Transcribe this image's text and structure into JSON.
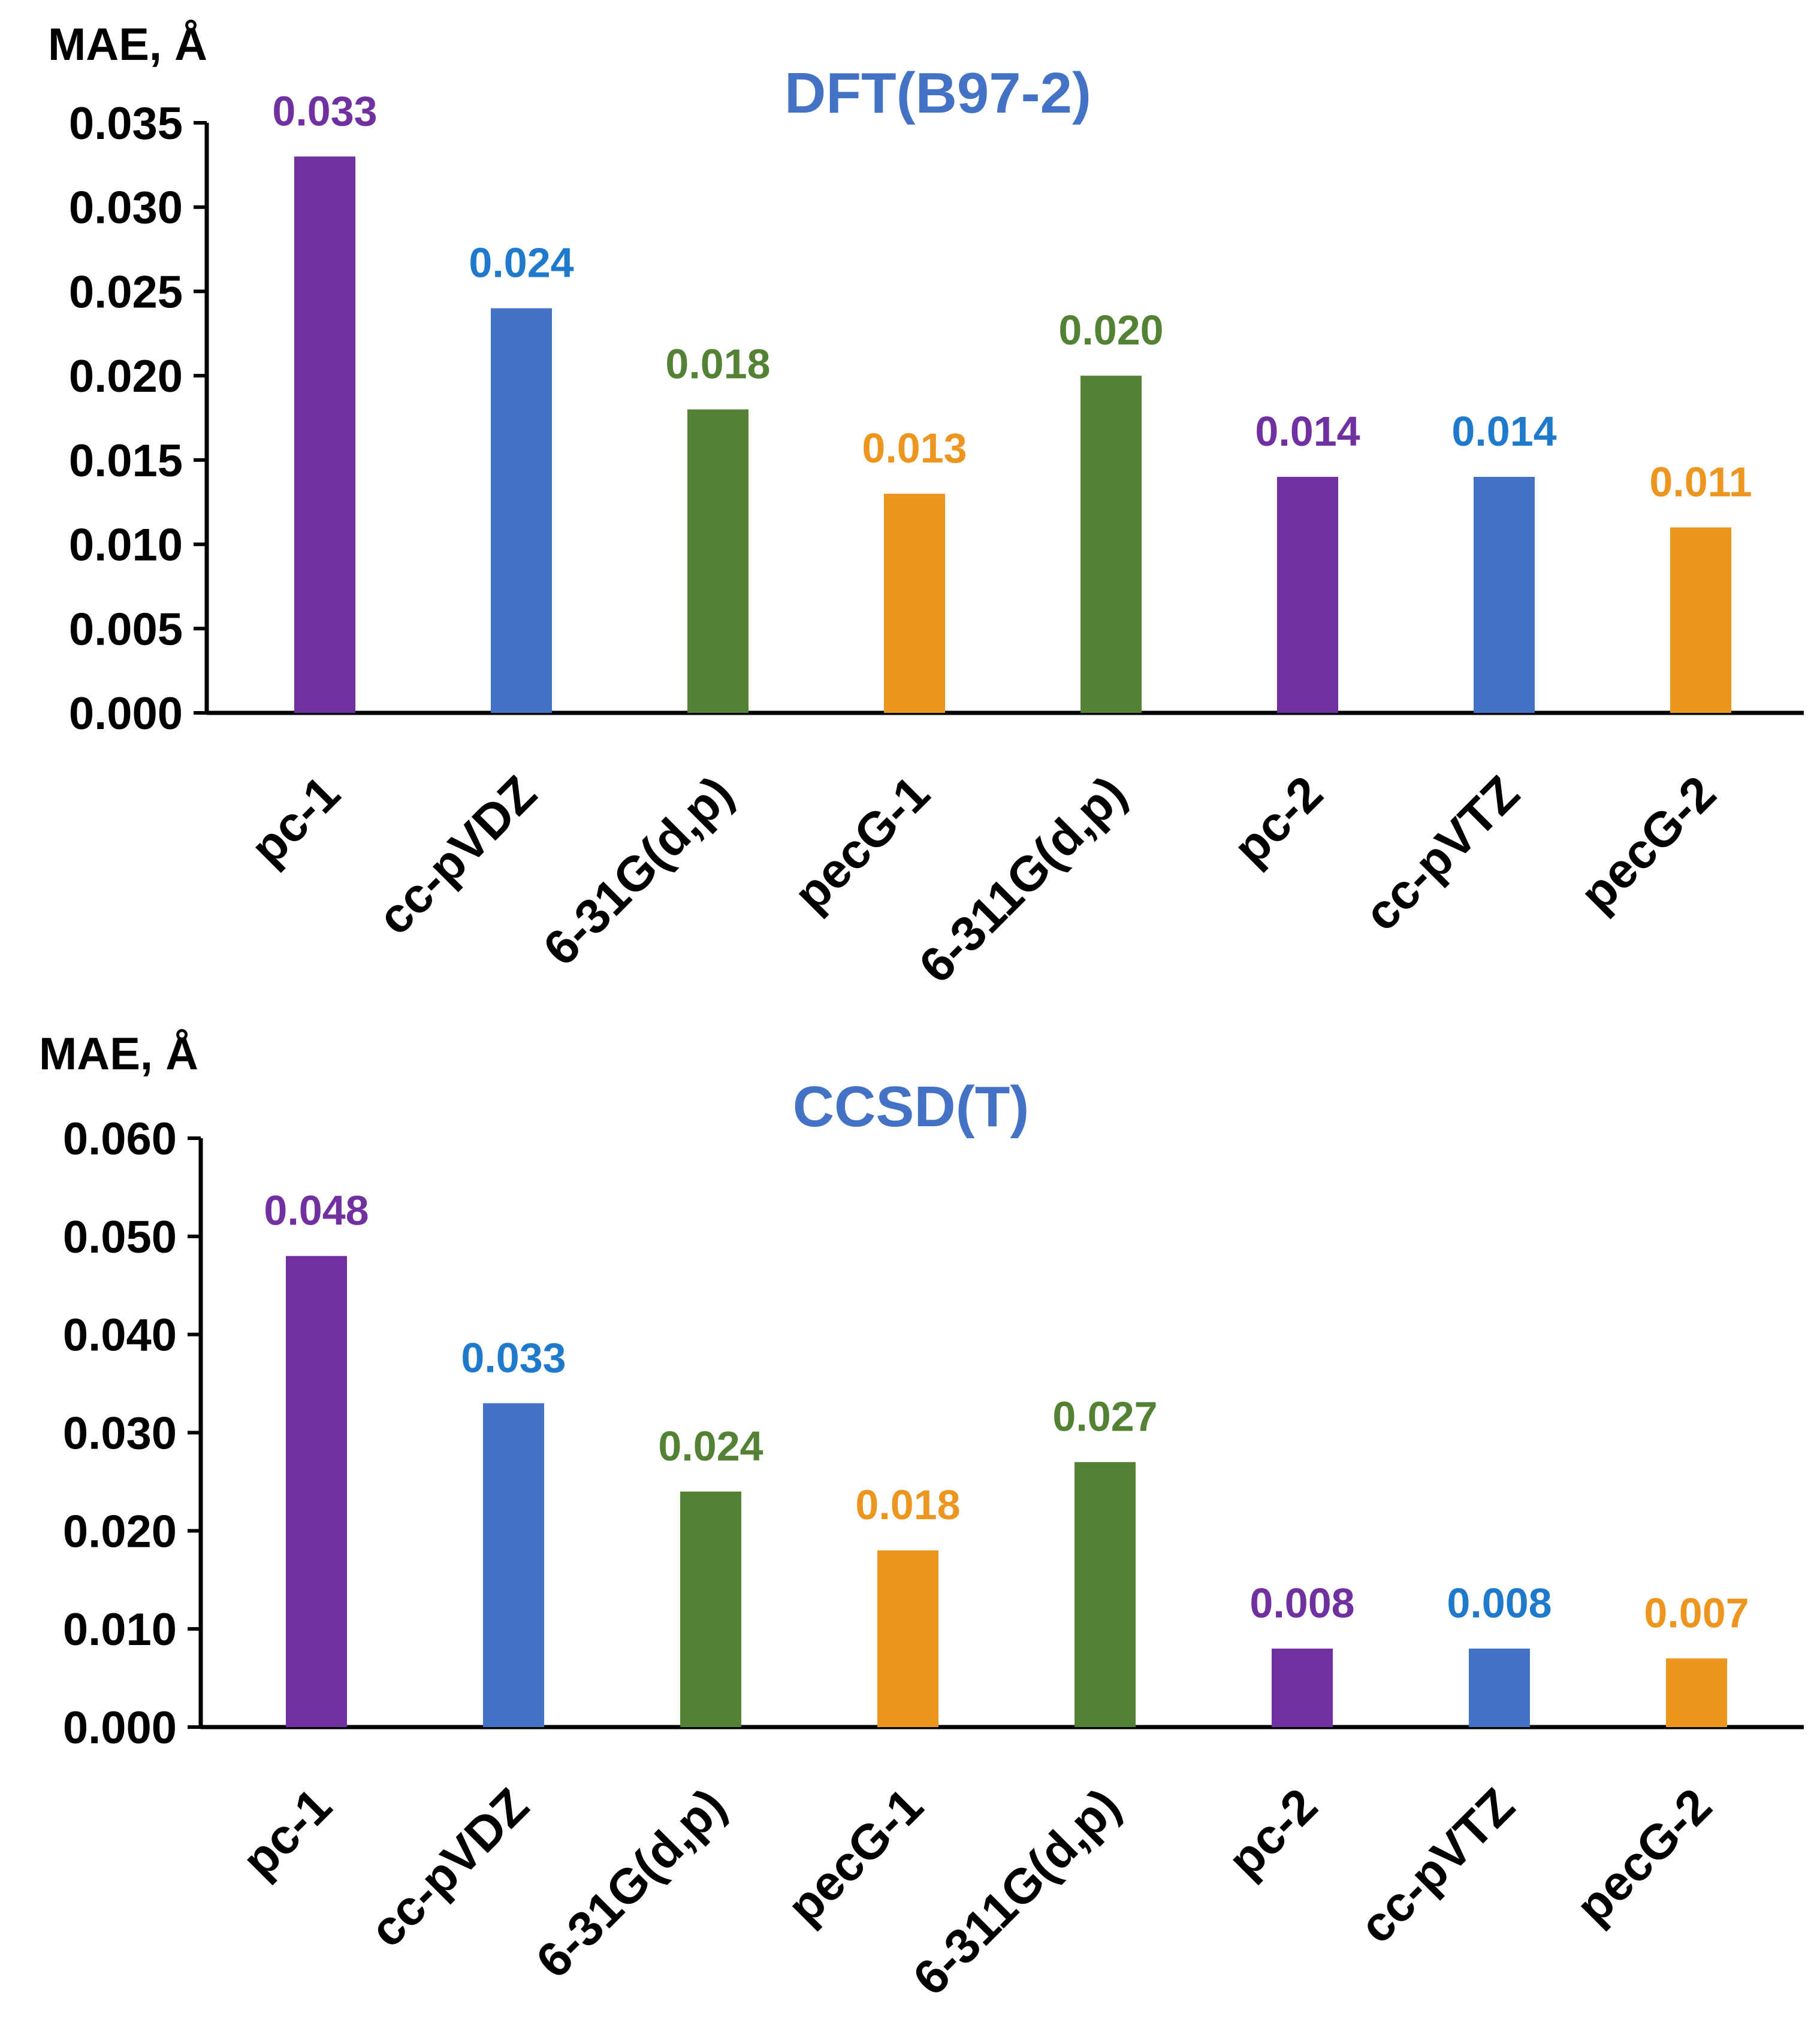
{
  "chart_data": [
    {
      "type": "bar",
      "title": "DFT(B97-2)",
      "ylabel": "MAE, Å",
      "xlabel": "",
      "ylim": [
        0,
        0.035
      ],
      "yticks": [
        "0.000",
        "0.005",
        "0.010",
        "0.015",
        "0.020",
        "0.025",
        "0.030",
        "0.035"
      ],
      "categories": [
        "pc-1",
        "cc-pVDZ",
        "6-31G(d,p)",
        "pecG-1",
        "6-311G(d,p)",
        "pc-2",
        "cc-pVTZ",
        "pecG-2"
      ],
      "values": [
        0.033,
        0.024,
        0.018,
        0.013,
        0.02,
        0.014,
        0.014,
        0.011
      ],
      "labels": [
        "0.033",
        "0.024",
        "0.018",
        "0.013",
        "0.020",
        "0.014",
        "0.014",
        "0.011"
      ],
      "bar_colors": [
        "#7030A0",
        "#4472C4",
        "#548235",
        "#ED961F",
        "#548235",
        "#7030A0",
        "#4472C4",
        "#ED961F"
      ],
      "label_colors": [
        "#7030A0",
        "#1F7ACC",
        "#548235",
        "#ED961F",
        "#548235",
        "#7030A0",
        "#1F7ACC",
        "#ED961F"
      ],
      "title_color": "#4472C4",
      "grid": false
    },
    {
      "type": "bar",
      "title": "CCSD(T)",
      "ylabel": "MAE, Å",
      "xlabel": "",
      "ylim": [
        0,
        0.06
      ],
      "yticks": [
        "0.000",
        "0.010",
        "0.020",
        "0.030",
        "0.040",
        "0.050",
        "0.060"
      ],
      "categories": [
        "pc-1",
        "cc-pVDZ",
        "6-31G(d,p)",
        "pecG-1",
        "6-311G(d,p)",
        "pc-2",
        "cc-pVTZ",
        "pecG-2"
      ],
      "values": [
        0.048,
        0.033,
        0.024,
        0.018,
        0.027,
        0.008,
        0.008,
        0.007
      ],
      "labels": [
        "0.048",
        "0.033",
        "0.024",
        "0.018",
        "0.027",
        "0.008",
        "0.008",
        "0.007"
      ],
      "bar_colors": [
        "#7030A0",
        "#4472C4",
        "#548235",
        "#ED961F",
        "#548235",
        "#7030A0",
        "#4472C4",
        "#ED961F"
      ],
      "label_colors": [
        "#7030A0",
        "#1F7ACC",
        "#548235",
        "#ED961F",
        "#548235",
        "#7030A0",
        "#1F7ACC",
        "#ED961F"
      ],
      "title_color": "#4472C4",
      "grid": false
    }
  ]
}
